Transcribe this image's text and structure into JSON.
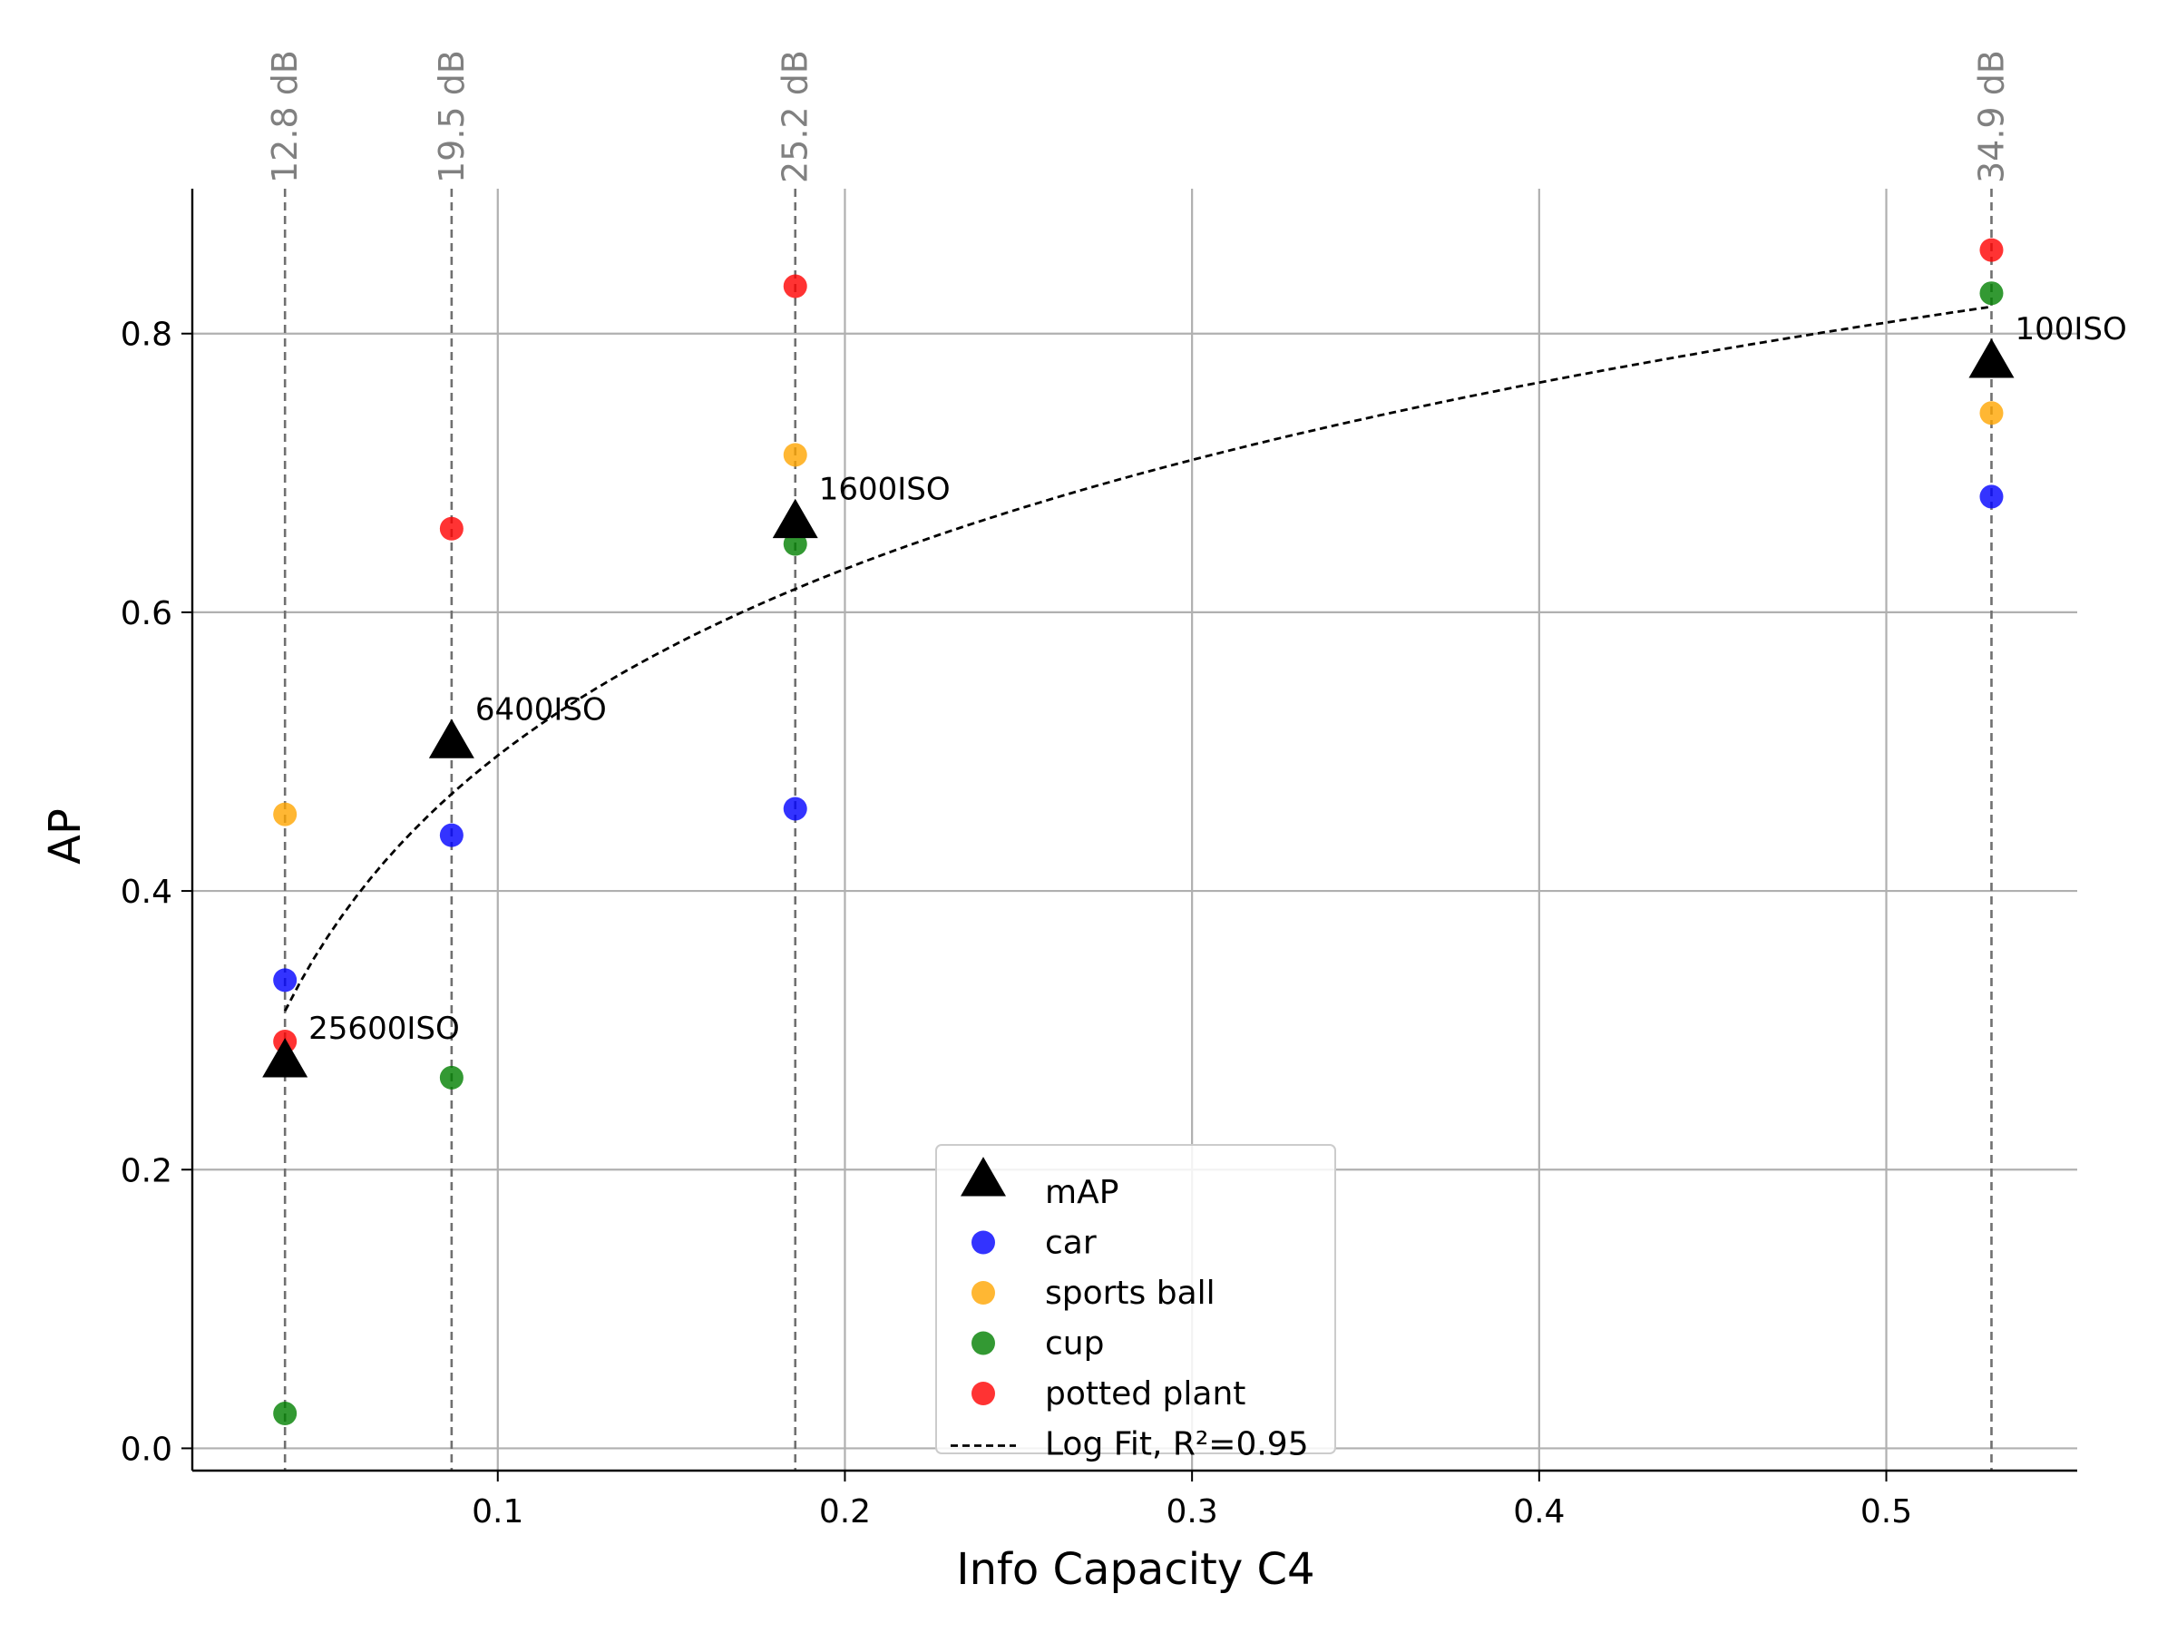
{
  "chart_data": {
    "type": "scatter",
    "title": "",
    "xlabel": "Info Capacity C4",
    "ylabel": "AP",
    "xlim": [
      0.012,
      0.555
    ],
    "ylim": [
      -0.016,
      0.904
    ],
    "xticks": [
      0.1,
      0.2,
      0.3,
      0.4,
      0.5
    ],
    "yticks": [
      0.0,
      0.2,
      0.4,
      0.6,
      0.8
    ],
    "xtick_labels": [
      "0.1",
      "0.2",
      "0.3",
      "0.4",
      "0.5"
    ],
    "ytick_labels": [
      "0.0",
      "0.2",
      "0.4",
      "0.6",
      "0.8"
    ],
    "grid": true,
    "legend_position": "lower-center",
    "vertical_markers": [
      {
        "x": 0.0387,
        "label": "12.8 dB"
      },
      {
        "x": 0.0867,
        "label": "19.5 dB"
      },
      {
        "x": 0.1857,
        "label": "25.2 dB"
      },
      {
        "x": 0.5303,
        "label": "34.9 dB"
      }
    ],
    "series": [
      {
        "name": "car",
        "color": "#0000ff",
        "marker": "circle",
        "points": [
          [
            0.0387,
            0.336
          ],
          [
            0.0867,
            0.44
          ],
          [
            0.1857,
            0.459
          ],
          [
            0.5303,
            0.683
          ]
        ]
      },
      {
        "name": "sports ball",
        "color": "#ffa500",
        "marker": "circle",
        "points": [
          [
            0.0387,
            0.455
          ],
          [
            0.1857,
            0.713
          ],
          [
            0.5303,
            0.743
          ]
        ]
      },
      {
        "name": "cup",
        "color": "#008000",
        "marker": "circle",
        "points": [
          [
            0.0387,
            0.025
          ],
          [
            0.0867,
            0.266
          ],
          [
            0.1857,
            0.649
          ],
          [
            0.5303,
            0.829
          ]
        ]
      },
      {
        "name": "potted plant",
        "color": "#ff0000",
        "marker": "circle",
        "points": [
          [
            0.0387,
            0.292
          ],
          [
            0.0867,
            0.66
          ],
          [
            0.1857,
            0.834
          ],
          [
            0.5303,
            0.86
          ]
        ]
      }
    ],
    "map_series": {
      "name": "mAP",
      "color": "#000000",
      "marker": "triangle",
      "points": [
        {
          "x": 0.0387,
          "y": 0.277,
          "label": "25600ISO"
        },
        {
          "x": 0.0867,
          "y": 0.506,
          "label": "6400ISO"
        },
        {
          "x": 0.1857,
          "y": 0.664,
          "label": "1600ISO"
        },
        {
          "x": 0.5303,
          "y": 0.779,
          "label": "100ISO"
        }
      ]
    },
    "fit": {
      "name": "Log Fit, R²=0.95",
      "style": "dashed",
      "color": "#000000",
      "model": "a*ln(x)+b",
      "a": 0.1931,
      "b": 0.9418,
      "x_range": [
        0.0387,
        0.5303
      ]
    },
    "legend": [
      "mAP",
      "car",
      "sports ball",
      "cup",
      "potted plant",
      "Log Fit, R²=0.95"
    ]
  }
}
